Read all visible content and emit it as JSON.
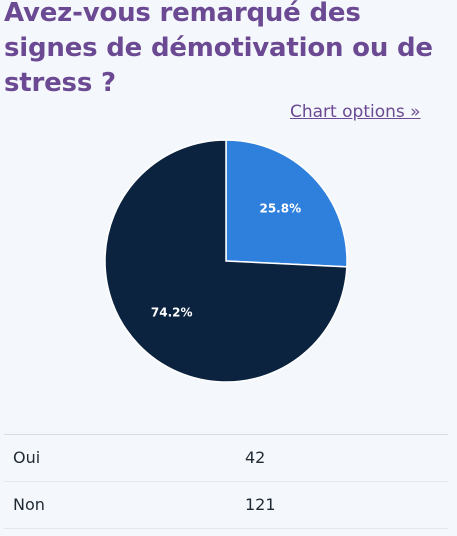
{
  "title": "Avez-vous remarqué des signes de démotivation ou de stress ?",
  "chart_options_label": "Chart options »",
  "chart_data": {
    "type": "pie",
    "categories": [
      "Oui",
      "Non"
    ],
    "values": [
      42,
      121
    ],
    "percent_labels": [
      "25.8%",
      "74.2%"
    ],
    "colors": [
      "#2f80dd",
      "#0c2340"
    ]
  },
  "table": {
    "rows": [
      {
        "label": "Oui",
        "value": "42"
      },
      {
        "label": "Non",
        "value": "121"
      }
    ]
  }
}
